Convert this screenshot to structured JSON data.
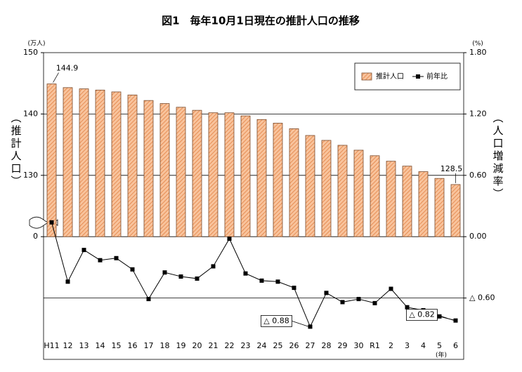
{
  "chart_data": {
    "type": "bar-line",
    "title": "図1　毎年10月1日現在の推計人口の推移",
    "y_unit": "(万人)",
    "y_label": "（推計人口）",
    "y2_unit": "(%)",
    "y2_label": "（人口増減率）",
    "x_unit": "(年)",
    "categories": [
      "H11",
      "12",
      "13",
      "14",
      "15",
      "16",
      "17",
      "18",
      "19",
      "20",
      "21",
      "22",
      "23",
      "24",
      "25",
      "26",
      "27",
      "28",
      "29",
      "30",
      "R1",
      "2",
      "3",
      "4",
      "5",
      "6"
    ],
    "ylim": [
      100,
      150
    ],
    "yticks": [
      {
        "value": 120,
        "label": "0"
      },
      130,
      140,
      150
    ],
    "y2lim": [
      -1.2,
      1.8
    ],
    "y2ticks": [
      {
        "value": -0.6,
        "label": "△ 0.60"
      },
      {
        "value": 0,
        "label": "0.00"
      },
      {
        "value": 0.6,
        "label": "0.60"
      },
      {
        "value": 1.2,
        "label": "1.20"
      },
      {
        "value": 1.8,
        "label": "1.80"
      }
    ],
    "grid": true,
    "legend": "upper right",
    "series": [
      {
        "name": "推計人口",
        "type": "bar",
        "color": "#f4a46a",
        "values": [
          144.9,
          144.3,
          144.1,
          143.9,
          143.6,
          143.1,
          142.2,
          141.7,
          141.1,
          140.6,
          140.2,
          140.2,
          139.7,
          139.1,
          138.5,
          137.6,
          136.5,
          135.7,
          134.9,
          134.1,
          133.2,
          132.3,
          131.5,
          130.6,
          129.5,
          128.5
        ],
        "value_labels": [
          "144.9",
          null,
          null,
          null,
          null,
          null,
          null,
          null,
          null,
          null,
          null,
          null,
          null,
          null,
          null,
          null,
          null,
          null,
          null,
          null,
          null,
          null,
          null,
          null,
          null,
          "128.5"
        ]
      },
      {
        "name": "前年比",
        "type": "line",
        "axis": "y2",
        "color": "#000000",
        "values": [
          0.14,
          -0.44,
          -0.13,
          -0.23,
          -0.21,
          -0.32,
          -0.61,
          -0.35,
          -0.39,
          -0.41,
          -0.29,
          -0.02,
          -0.36,
          -0.43,
          -0.44,
          -0.5,
          -0.88,
          -0.55,
          -0.64,
          -0.61,
          -0.65,
          -0.51,
          -0.69,
          -0.72,
          -0.78,
          -0.82
        ],
        "value_labels": [
          null,
          null,
          null,
          null,
          null,
          null,
          null,
          null,
          null,
          null,
          null,
          null,
          null,
          null,
          null,
          null,
          "△ 0.88",
          null,
          null,
          null,
          null,
          null,
          null,
          null,
          null,
          "△ 0.82"
        ]
      }
    ]
  }
}
